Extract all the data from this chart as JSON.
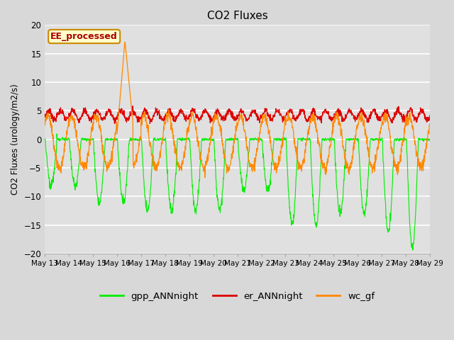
{
  "title": "CO2 Fluxes",
  "ylabel": "CO2 Fluxes (urology/m2/s)",
  "ylim": [
    -20,
    20
  ],
  "yticks": [
    -20,
    -15,
    -10,
    -5,
    0,
    5,
    10,
    15,
    20
  ],
  "background_color": "#d8d8d8",
  "plot_bg_color": "#e0e0e0",
  "gpp_color": "#00ee00",
  "er_color": "#dd0000",
  "wc_color": "#ff8800",
  "legend_label": "EE_processed",
  "legend_facecolor": "#ffffcc",
  "legend_edgecolor": "#cc8800",
  "legend_text_color": "#aa0000",
  "series_labels": [
    "gpp_ANNnight",
    "er_ANNnight",
    "wc_gf"
  ],
  "n_days": 16,
  "start_day": 13,
  "points_per_day": 96
}
